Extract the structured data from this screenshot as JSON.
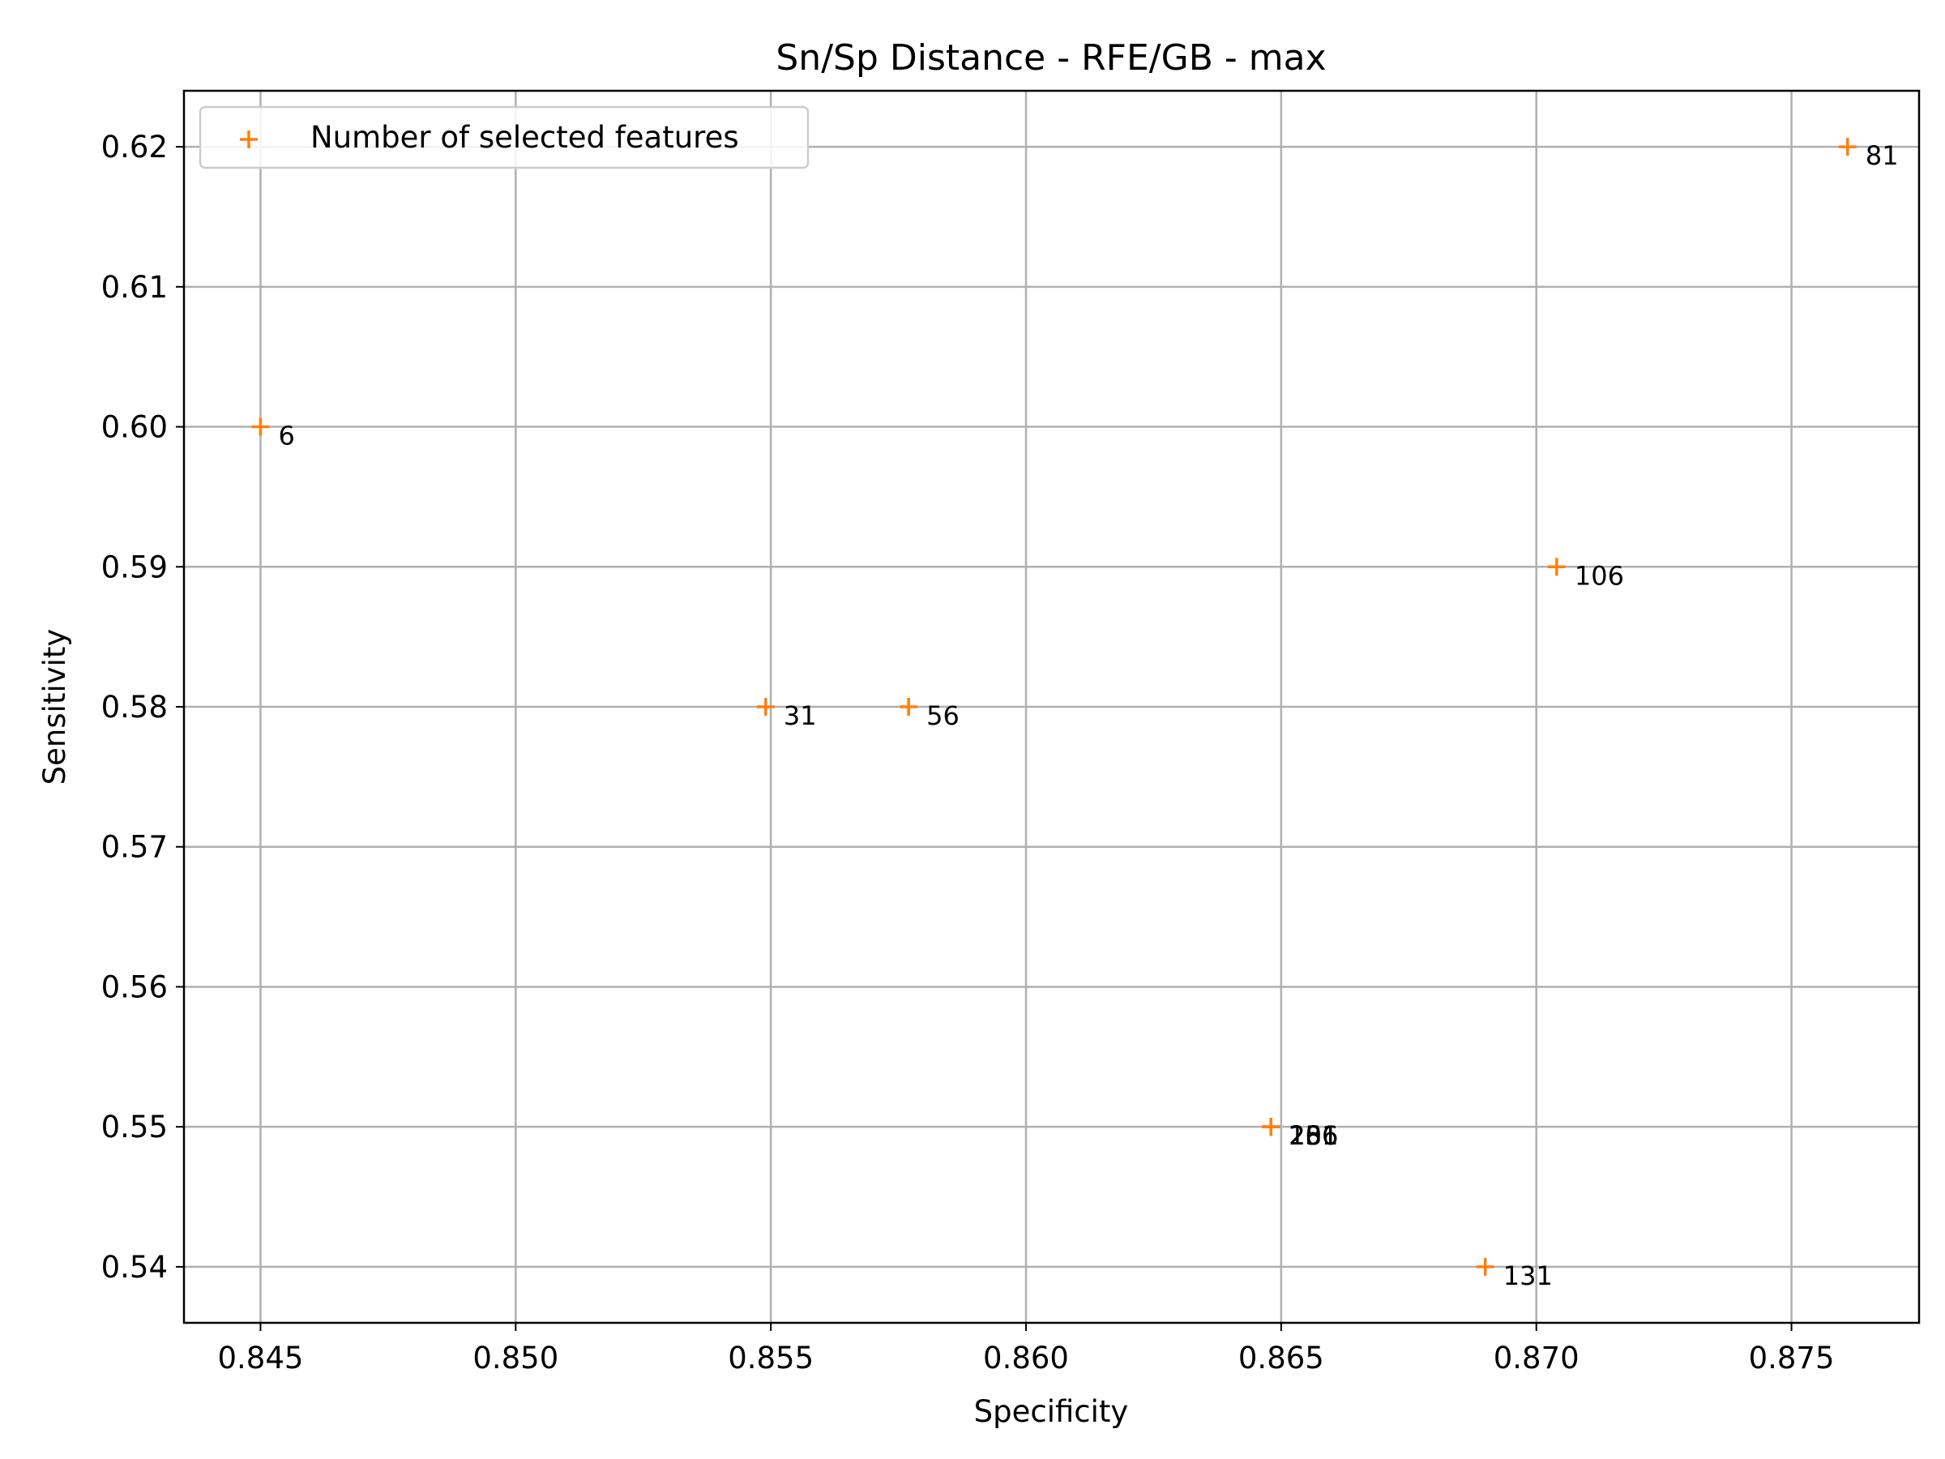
{
  "chart_data": {
    "type": "scatter",
    "title": "Sn/Sp Distance - RFE/GB - max",
    "xlabel": "Specificity",
    "ylabel": "Sensitivity",
    "xlim": [
      0.8435,
      0.8775
    ],
    "ylim": [
      0.536,
      0.624
    ],
    "xticks": [
      0.845,
      0.85,
      0.855,
      0.86,
      0.865,
      0.87,
      0.875
    ],
    "xtick_labels": [
      "0.845",
      "0.850",
      "0.855",
      "0.860",
      "0.865",
      "0.870",
      "0.875"
    ],
    "yticks": [
      0.54,
      0.55,
      0.56,
      0.57,
      0.58,
      0.59,
      0.6,
      0.61,
      0.62
    ],
    "ytick_labels": [
      "0.54",
      "0.55",
      "0.56",
      "0.57",
      "0.58",
      "0.59",
      "0.60",
      "0.61",
      "0.62"
    ],
    "grid": true,
    "legend": {
      "position": "upper-left",
      "entries": [
        "Number of selected features"
      ]
    },
    "marker_color": "#ff7f0e",
    "series": [
      {
        "name": "Number of selected features",
        "points": [
          {
            "x": 0.845,
            "y": 0.6,
            "label": "6"
          },
          {
            "x": 0.8549,
            "y": 0.58,
            "label": "31"
          },
          {
            "x": 0.8577,
            "y": 0.58,
            "label": "56"
          },
          {
            "x": 0.8761,
            "y": 0.62,
            "label": "81"
          },
          {
            "x": 0.8704,
            "y": 0.59,
            "label": "106"
          },
          {
            "x": 0.869,
            "y": 0.54,
            "label": "131"
          },
          {
            "x": 0.8648,
            "y": 0.55,
            "label": "156"
          },
          {
            "x": 0.8648,
            "y": 0.55,
            "label": "181"
          },
          {
            "x": 0.8648,
            "y": 0.55,
            "label": "206"
          },
          {
            "x": 0.8648,
            "y": 0.55,
            "label": "231"
          }
        ]
      }
    ]
  }
}
